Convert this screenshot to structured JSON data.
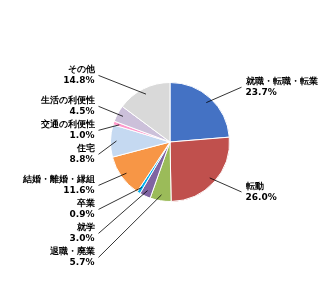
{
  "chart_data": {
    "type": "pie",
    "categories": [
      "就職・転職・転業",
      "転動",
      "退職・廃業",
      "就学",
      "卒業",
      "結婚・離婚・縁組",
      "住宅",
      "交通の利便性",
      "生活の利便性",
      "その他"
    ],
    "values": [
      23.7,
      26.0,
      5.7,
      3.0,
      0.9,
      11.6,
      8.8,
      1.0,
      4.5,
      14.8
    ],
    "value_labels": [
      "23.7%",
      "26.0%",
      "5.7%",
      "3.0%",
      "0.9%",
      "11.6%",
      "8.8%",
      "1.0%",
      "4.5%",
      "14.8%"
    ],
    "colors": [
      "#4472C4",
      "#C0504D",
      "#9BBB59",
      "#8064A2",
      "#00B0F0",
      "#F79646",
      "#C5D9F1",
      "#FF99CC",
      "#CCC0DA",
      "#D9D9D9"
    ],
    "data_labels": true
  }
}
